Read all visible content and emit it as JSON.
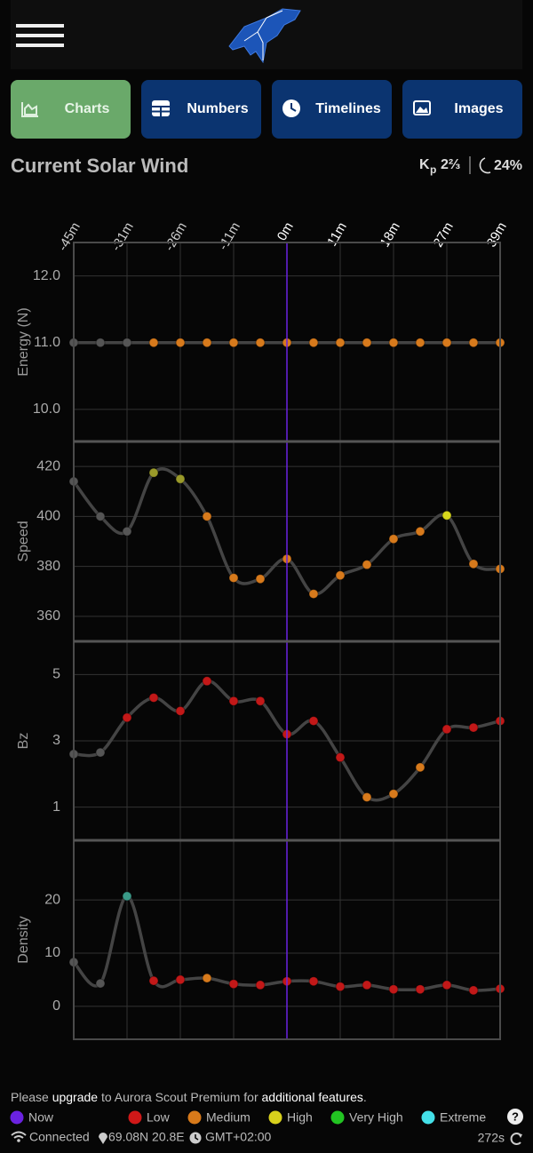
{
  "tabs": [
    {
      "label": "Charts",
      "color": "#6aa96a",
      "active": true
    },
    {
      "label": "Numbers",
      "color": "#0b3470",
      "active": false
    },
    {
      "label": "Timelines",
      "color": "#0b3470",
      "active": false
    },
    {
      "label": "Images",
      "color": "#0b3470",
      "active": false
    }
  ],
  "header": {
    "title": "Current Solar Wind",
    "kp_symbol": "K",
    "kp_sub": "p",
    "kp_value": "2⅔",
    "moon": "24%"
  },
  "time_axis": {
    "categories": [
      "-45m",
      null,
      "-31m",
      null,
      "-26m",
      null,
      "-11m",
      null,
      "0m",
      null,
      "11m",
      null,
      "18m",
      null,
      "27m",
      null,
      "39m"
    ],
    "now_index": 8,
    "now_color": "#6a22e0"
  },
  "chart_data": [
    {
      "type": "line",
      "y_label": "Energy (N)",
      "ylim": [
        9.52,
        12.5
      ],
      "yticks": [
        {
          "value": 12,
          "label": "12.0"
        },
        {
          "value": 11,
          "label": "11.0"
        },
        {
          "value": 10,
          "label": "10.0"
        }
      ],
      "values": [
        11,
        11,
        11,
        11,
        11,
        11,
        11,
        11,
        11,
        11,
        11,
        11,
        11,
        11,
        11,
        11,
        11
      ],
      "line_color": "#444444",
      "point_colors": [
        "#555555",
        "#555555",
        "#555555",
        "#d77a1c",
        "#d77a1c",
        "#d77a1c",
        "#d77a1c",
        "#d77a1c",
        "#d77a1c",
        "#d77a1c",
        "#d77a1c",
        "#d77a1c",
        "#d77a1c",
        "#d77a1c",
        "#d77a1c",
        "#d77a1c",
        "#d77a1c"
      ]
    },
    {
      "type": "line",
      "y_label": "Speed",
      "ylim": [
        350,
        430
      ],
      "yticks": [
        420,
        400,
        380,
        360
      ],
      "values": [
        414,
        400,
        394,
        417.5,
        415,
        400,
        375.4,
        375,
        383,
        369,
        376.4,
        380.7,
        391,
        394,
        400.4,
        381,
        379
      ],
      "line_color": "#444444",
      "point_colors": [
        "#555555",
        "#555555",
        "#555555",
        "#9a9a2a",
        "#9a9a2a",
        "#d77a1c",
        "#d77a1c",
        "#d77a1c",
        "#d77a1c",
        "#d77a1c",
        "#d77a1c",
        "#d77a1c",
        "#d77a1c",
        "#d77a1c",
        "#d8d81c",
        "#d77a1c",
        "#d77a1c"
      ]
    },
    {
      "type": "line",
      "y_label": "Bz",
      "ylim": [
        0,
        6
      ],
      "yticks": [
        5,
        3,
        1
      ],
      "values": [
        2.6,
        2.65,
        3.7,
        4.3,
        3.9,
        4.8,
        4.2,
        4.2,
        3.2,
        3.6,
        2.5,
        1.3,
        1.4,
        2.2,
        3.35,
        3.4,
        3.6
      ],
      "line_color": "#444444",
      "point_colors": [
        "#555555",
        "#555555",
        "#c21818",
        "#c21818",
        "#c21818",
        "#c21818",
        "#c21818",
        "#c21818",
        "#c21818",
        "#c21818",
        "#c21818",
        "#d77a1c",
        "#d77a1c",
        "#d77a1c",
        "#c21818",
        "#c21818",
        "#c21818"
      ]
    },
    {
      "type": "line",
      "y_label": "Density",
      "ylim": [
        -6.2,
        31.2
      ],
      "yticks": [
        20,
        10,
        0
      ],
      "values": [
        8.3,
        4.3,
        20.7,
        4.8,
        5,
        5.3,
        4.2,
        4,
        4.7,
        4.7,
        3.7,
        4,
        3.2,
        3.2,
        4,
        3,
        3.3
      ],
      "line_color": "#444444",
      "point_colors": [
        "#555555",
        "#555555",
        "#3a9a88",
        "#c21818",
        "#c21818",
        "#d77a1c",
        "#c21818",
        "#c21818",
        "#c21818",
        "#c21818",
        "#c21818",
        "#c21818",
        "#c21818",
        "#c21818",
        "#c21818",
        "#c21818",
        "#c21818"
      ]
    }
  ],
  "notice": [
    "Please ",
    "upgrade",
    " to Aurora Scout Premium for ",
    "additional features",
    "."
  ],
  "legend": [
    {
      "name": "Now",
      "color": "#6a22e0"
    },
    {
      "name": "Low",
      "color": "#d01818"
    },
    {
      "name": "Medium",
      "color": "#d87a1a"
    },
    {
      "name": "High",
      "color": "#d8d01c"
    },
    {
      "name": "Very High",
      "color": "#22c422"
    },
    {
      "name": "Extreme",
      "color": "#44e0e8"
    }
  ],
  "help": "?",
  "status": {
    "connection": "Connected",
    "location": "69.08N 20.8E",
    "timezone": "GMT+02:00",
    "refresh": "272s"
  }
}
